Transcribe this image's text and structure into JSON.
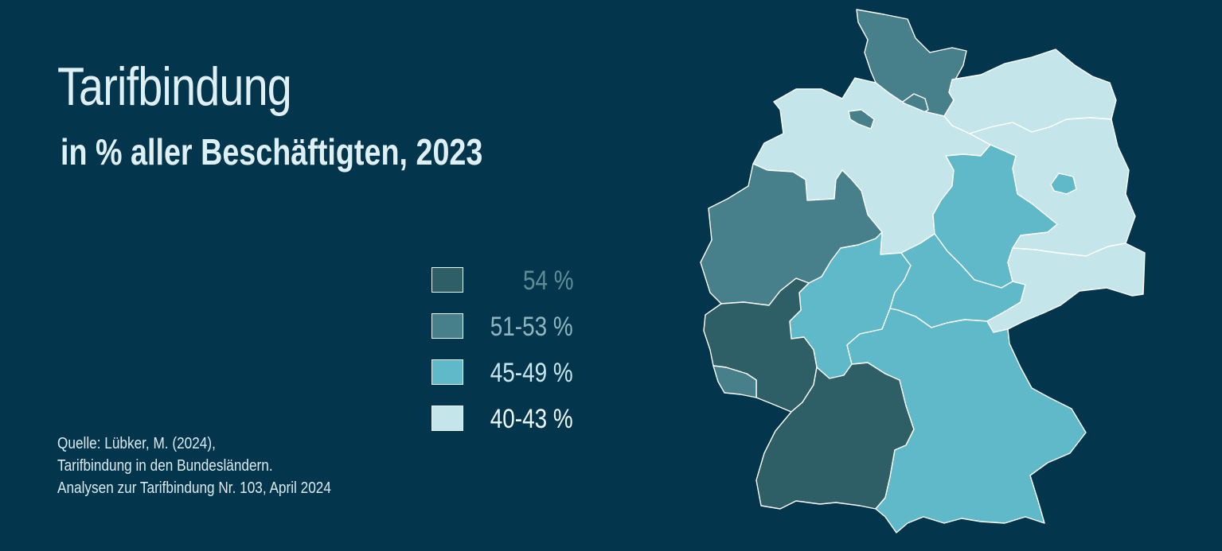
{
  "title": "Tarifbindung",
  "subtitle": "in % aller Beschäftigten, 2023",
  "legend": [
    {
      "label": "54 %",
      "color": "#2f5f66",
      "text_color": "#5f8d96"
    },
    {
      "label": "51-53 %",
      "color": "#47808a",
      "text_color": "#8fb6be"
    },
    {
      "label": "45-49 %",
      "color": "#5fb9c8",
      "text_color": "#c9e6ec"
    },
    {
      "label": "40-43 %",
      "color": "#c4e5ea",
      "text_color": "#eef8fa"
    }
  ],
  "source": {
    "line1": "Quelle: Lübker, M. (2024),",
    "line2": "Tarifbindung in den Bundesländern.",
    "line3": "Analysen zur Tarifbindung Nr. 103, April 2024"
  },
  "map": {
    "states": [
      {
        "name": "Schleswig-Holstein",
        "category": "51-53 %"
      },
      {
        "name": "Hamburg",
        "category": "51-53 %"
      },
      {
        "name": "Mecklenburg-Vorpommern",
        "category": "40-43 %"
      },
      {
        "name": "Niedersachsen",
        "category": "40-43 %"
      },
      {
        "name": "Bremen",
        "category": "51-53 %"
      },
      {
        "name": "Brandenburg",
        "category": "40-43 %"
      },
      {
        "name": "Berlin",
        "category": "45-49 %"
      },
      {
        "name": "Sachsen-Anhalt",
        "category": "45-49 %"
      },
      {
        "name": "Nordrhein-Westfalen",
        "category": "51-53 %"
      },
      {
        "name": "Hessen",
        "category": "45-49 %"
      },
      {
        "name": "Thüringen",
        "category": "45-49 %"
      },
      {
        "name": "Sachsen",
        "category": "40-43 %"
      },
      {
        "name": "Rheinland-Pfalz",
        "category": "54 %"
      },
      {
        "name": "Saarland",
        "category": "51-53 %"
      },
      {
        "name": "Baden-Württemberg",
        "category": "54 %"
      },
      {
        "name": "Bayern",
        "category": "45-49 %"
      }
    ]
  }
}
